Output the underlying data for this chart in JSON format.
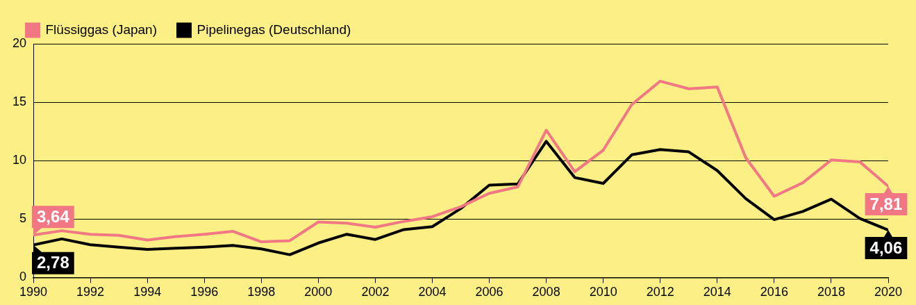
{
  "chart_data": {
    "type": "line",
    "x": [
      1990,
      1991,
      1992,
      1993,
      1994,
      1995,
      1996,
      1997,
      1998,
      1999,
      2000,
      2001,
      2002,
      2003,
      2004,
      2005,
      2006,
      2007,
      2008,
      2009,
      2010,
      2011,
      2012,
      2013,
      2014,
      2015,
      2016,
      2017,
      2018,
      2019,
      2020
    ],
    "series": [
      {
        "name": "Flüssiggas (Japan)",
        "color": "#f07783",
        "values": [
          3.64,
          4.0,
          3.7,
          3.6,
          3.2,
          3.5,
          3.7,
          3.95,
          3.05,
          3.15,
          4.75,
          4.65,
          4.3,
          4.8,
          5.2,
          6.05,
          7.2,
          7.75,
          12.6,
          9.05,
          10.9,
          14.8,
          16.8,
          16.15,
          16.3,
          10.25,
          6.95,
          8.1,
          10.05,
          9.9,
          7.81
        ],
        "value_labels": [
          "3,64",
          null,
          null,
          null,
          null,
          null,
          null,
          null,
          null,
          null,
          null,
          null,
          null,
          null,
          null,
          null,
          null,
          null,
          null,
          null,
          null,
          null,
          null,
          null,
          null,
          null,
          null,
          null,
          null,
          null,
          "7,81"
        ]
      },
      {
        "name": "Pipelinegas (Deutschland)",
        "color": "#000000",
        "values": [
          2.78,
          3.3,
          2.8,
          2.6,
          2.4,
          2.5,
          2.6,
          2.75,
          2.45,
          1.95,
          2.95,
          3.7,
          3.25,
          4.1,
          4.35,
          5.9,
          7.9,
          8.0,
          11.65,
          8.55,
          8.05,
          10.5,
          10.95,
          10.75,
          9.15,
          6.75,
          4.95,
          5.65,
          6.7,
          5.05,
          4.06
        ],
        "value_labels": [
          "2,78",
          null,
          null,
          null,
          null,
          null,
          null,
          null,
          null,
          null,
          null,
          null,
          null,
          null,
          null,
          null,
          null,
          null,
          null,
          null,
          null,
          null,
          null,
          null,
          null,
          null,
          null,
          null,
          null,
          null,
          "4,06"
        ]
      }
    ],
    "xlim": [
      1990,
      2020
    ],
    "xticks": [
      1990,
      1992,
      1994,
      1996,
      1998,
      2000,
      2002,
      2004,
      2006,
      2008,
      2010,
      2012,
      2014,
      2016,
      2018,
      2020
    ],
    "ylim": [
      0,
      20
    ],
    "yticks": [
      0,
      5,
      10,
      15,
      20
    ],
    "grid": "y",
    "legend": "top left",
    "marker": "none",
    "line_style": "solid"
  }
}
